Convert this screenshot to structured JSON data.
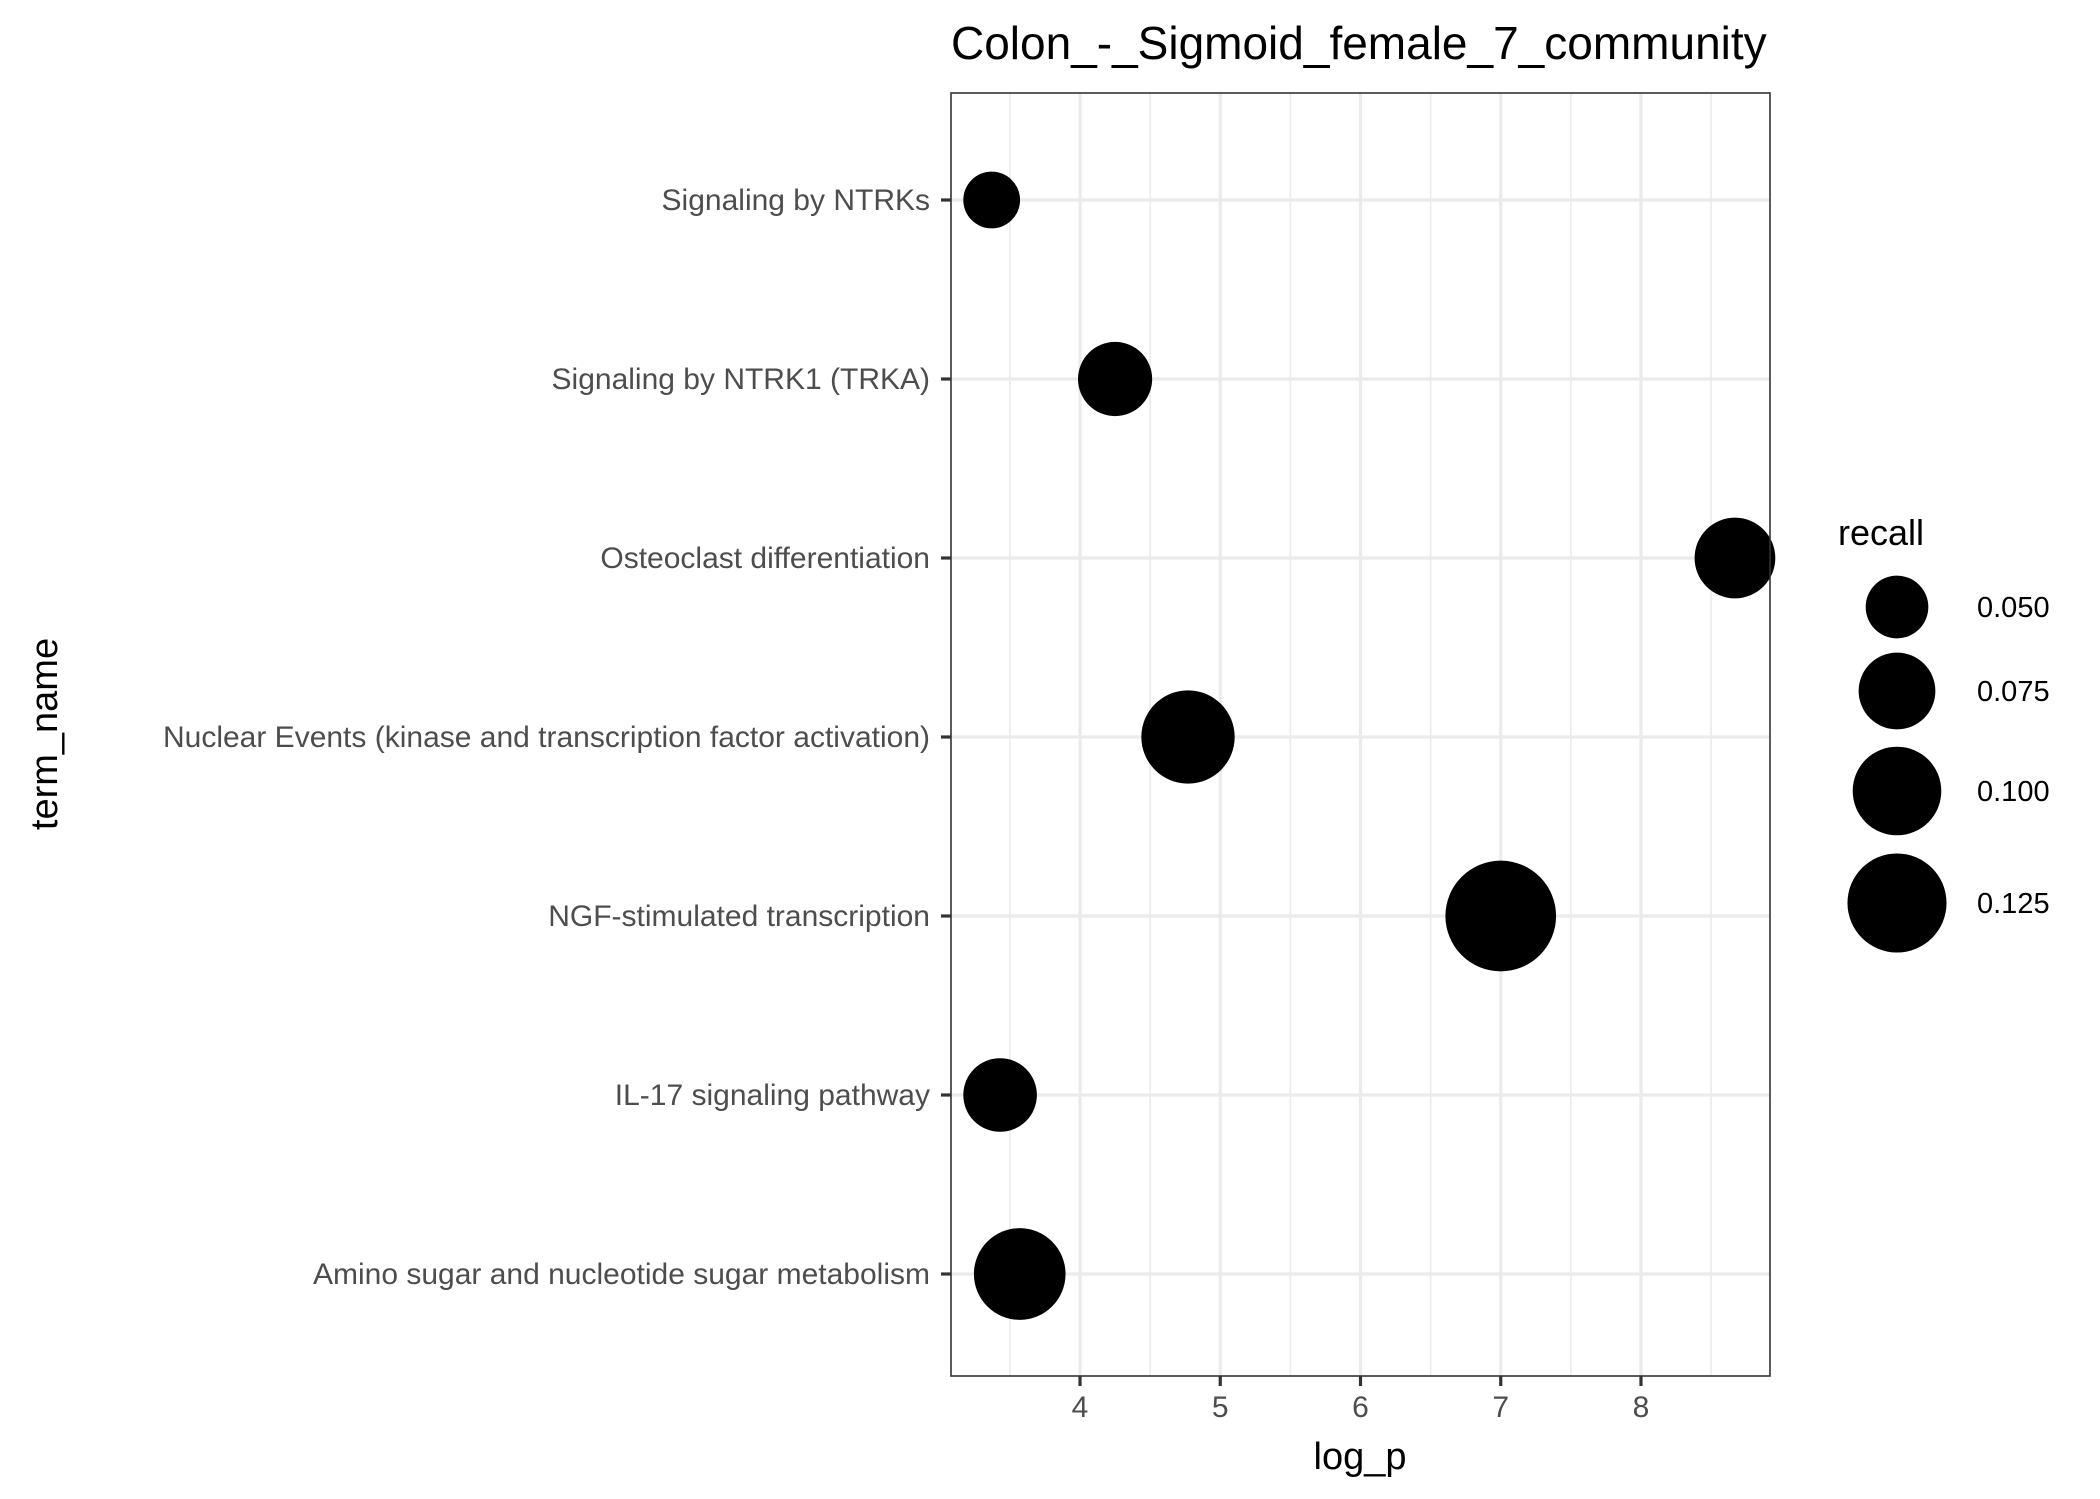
{
  "chart_data": {
    "type": "scatter",
    "title": "Colon_-_Sigmoid_female_7_community",
    "xlabel": "log_p",
    "ylabel": "term_name",
    "x_ticks": [
      4,
      5,
      6,
      7,
      8
    ],
    "xlim": [
      3.08,
      8.92
    ],
    "categories": [
      "Signaling by NTRKs",
      "Signaling by NTRK1 (TRKA)",
      "Osteoclast differentiation",
      "Nuclear Events (kinase and transcription factor activation)",
      "NGF-stimulated transcription",
      "IL-17 signaling pathway",
      "Amino sugar and nucleotide sugar metabolism"
    ],
    "points": [
      {
        "term": "Signaling by NTRKs",
        "log_p": 3.37,
        "recall": 0.041
      },
      {
        "term": "Signaling by NTRK1 (TRKA)",
        "log_p": 4.25,
        "recall": 0.07
      },
      {
        "term": "Osteoclast differentiation",
        "log_p": 8.67,
        "recall": 0.083
      },
      {
        "term": "Nuclear Events (kinase and transcription factor activation)",
        "log_p": 4.77,
        "recall": 0.111
      },
      {
        "term": "NGF-stimulated transcription",
        "log_p": 7.0,
        "recall": 0.156
      },
      {
        "term": "IL-17 signaling pathway",
        "log_p": 3.43,
        "recall": 0.069
      },
      {
        "term": "Amino sugar and nucleotide sugar metabolism",
        "log_p": 3.57,
        "recall": 0.107
      }
    ],
    "size_legend": {
      "title": "recall",
      "values": [
        0.05,
        0.075,
        0.1,
        0.125
      ],
      "labels": [
        "0.050",
        "0.075",
        "0.100",
        "0.125"
      ]
    },
    "grid": true,
    "legend_position": "right",
    "point_color": "#000000"
  }
}
